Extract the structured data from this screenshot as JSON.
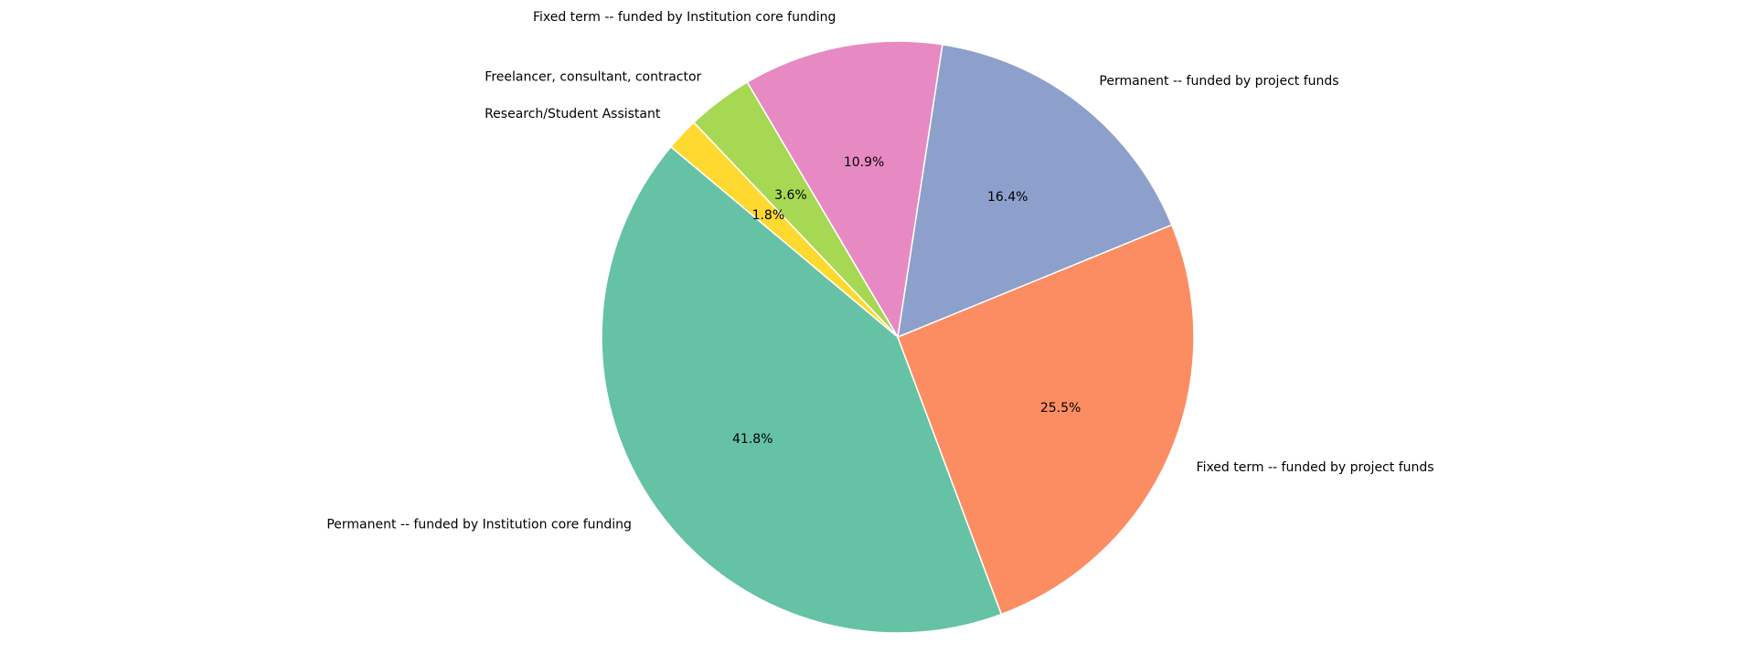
{
  "chart_data": {
    "type": "pie",
    "title": "",
    "start_angle_deg": 140,
    "direction": "counterclockwise",
    "slices": [
      {
        "label": "Permanent -- funded by Institution core funding",
        "value": 41.8,
        "pct_label": "41.8%",
        "color": "#66c2a5"
      },
      {
        "label": "Fixed term -- funded by project funds",
        "value": 25.5,
        "pct_label": "25.5%",
        "color": "#fc8d62"
      },
      {
        "label": "Permanent -- funded by project funds",
        "value": 16.4,
        "pct_label": "16.4%",
        "color": "#8da0cb"
      },
      {
        "label": "Fixed term -- funded by Institution core funding",
        "value": 10.9,
        "pct_label": "10.9%",
        "color": "#e78ac3"
      },
      {
        "label": "Freelancer, consultant, contractor",
        "value": 3.6,
        "pct_label": "3.6%",
        "color": "#a6d854"
      },
      {
        "label": "Research/Student Assistant",
        "value": 1.8,
        "pct_label": "1.8%",
        "color": "#ffd92f"
      }
    ]
  }
}
